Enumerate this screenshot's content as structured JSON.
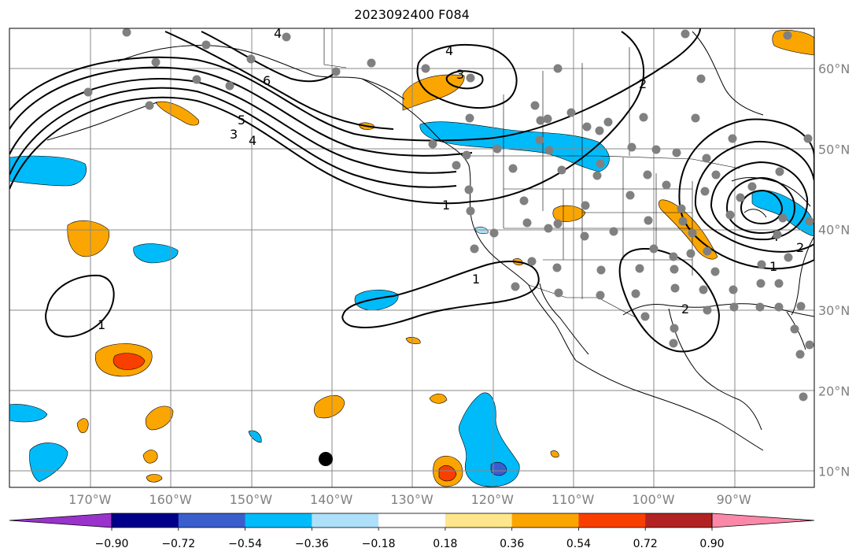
{
  "title": "2023092400 F084",
  "map": {
    "lon_range": [
      -180,
      -80
    ],
    "lat_range": [
      8,
      65
    ],
    "lon_ticks": [
      {
        "lon": -170,
        "label": "170°W"
      },
      {
        "lon": -160,
        "label": "160°W"
      },
      {
        "lon": -150,
        "label": "150°W"
      },
      {
        "lon": -140,
        "label": "140°W"
      },
      {
        "lon": -130,
        "label": "130°W"
      },
      {
        "lon": -120,
        "label": "120°W"
      },
      {
        "lon": -110,
        "label": "110°W"
      },
      {
        "lon": -100,
        "label": "100°W"
      },
      {
        "lon": -90,
        "label": "90°W"
      }
    ],
    "lat_ticks": [
      {
        "lat": 60,
        "label": "60°N"
      },
      {
        "lat": 50,
        "label": "50°N"
      },
      {
        "lat": 40,
        "label": "40°N"
      },
      {
        "lat": 30,
        "label": "30°N"
      },
      {
        "lat": 20,
        "label": "20°N"
      },
      {
        "lat": 10,
        "label": "10°N"
      }
    ],
    "gridlines": true,
    "contour_color": "#000000",
    "coastline_color": "#000000",
    "station_marker_color": "#808080",
    "storm_marker_color": "#000000",
    "contour_labels": [
      "1",
      "2",
      "3",
      "4",
      "5",
      "6"
    ]
  },
  "colorbar": {
    "colors": [
      "#9933cc",
      "#00008b",
      "#3a5ecc",
      "#00bbf9",
      "#aee0fa",
      "#ffffff",
      "#fde68c",
      "#fba500",
      "#f93f00",
      "#b22222",
      "#fb88a8"
    ],
    "tick_labels": [
      "−0.90",
      "−0.72",
      "−0.54",
      "−0.36",
      "−0.18",
      "0.18",
      "0.36",
      "0.54",
      "0.72",
      "0.90"
    ]
  }
}
